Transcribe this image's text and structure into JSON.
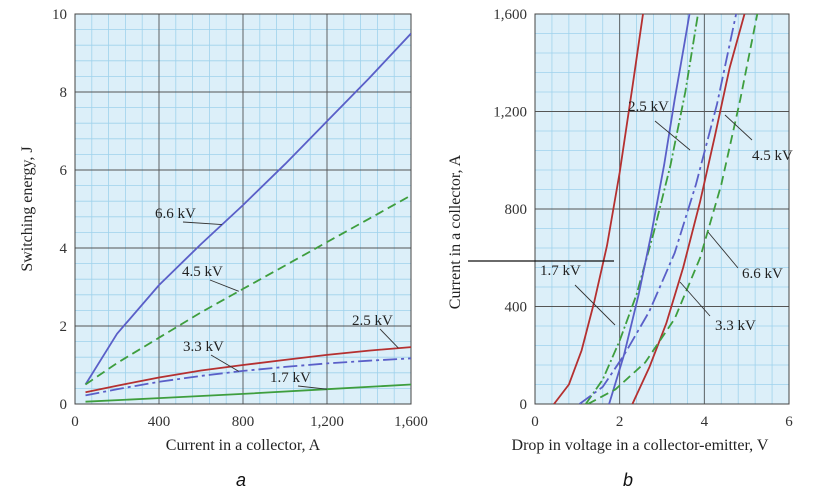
{
  "chart_data": [
    {
      "type": "line",
      "panel_letter": "a",
      "xlabel": "Current in a collector, A",
      "ylabel": "Switching energy, J",
      "xlim": [
        0,
        1600
      ],
      "ylim": [
        0,
        10
      ],
      "x_ticks": [
        0,
        400,
        800,
        1200,
        1600
      ],
      "x_tick_labels": [
        "0",
        "400",
        "800",
        "1,200",
        "1,600"
      ],
      "y_ticks": [
        0,
        2,
        4,
        6,
        8,
        10
      ],
      "y_tick_labels": [
        "0",
        "2",
        "4",
        "6",
        "8",
        "10"
      ],
      "grid": true,
      "series": [
        {
          "name": "6.6 kV",
          "color": "#5a5fc8",
          "dash": "solid",
          "x": [
            50,
            200,
            400,
            600,
            800,
            1000,
            1200,
            1400,
            1600
          ],
          "y": [
            0.5,
            1.8,
            3.05,
            4.1,
            5.1,
            6.15,
            7.25,
            8.35,
            9.5
          ]
        },
        {
          "name": "4.5 kV",
          "color": "#3e9e3e",
          "dash": "dashed",
          "x": [
            50,
            200,
            400,
            600,
            800,
            1000,
            1200,
            1400,
            1600
          ],
          "y": [
            0.5,
            1.05,
            1.7,
            2.35,
            2.95,
            3.55,
            4.15,
            4.75,
            5.35
          ]
        },
        {
          "name": "2.5 kV",
          "color": "#b53030",
          "dash": "solid",
          "x": [
            50,
            200,
            400,
            600,
            800,
            1000,
            1200,
            1400,
            1600
          ],
          "y": [
            0.3,
            0.47,
            0.68,
            0.86,
            1.0,
            1.13,
            1.26,
            1.37,
            1.46
          ]
        },
        {
          "name": "3.3 kV",
          "color": "#5a5fc8",
          "dash": "longdash",
          "x": [
            50,
            200,
            400,
            600,
            800,
            1000,
            1200,
            1400,
            1600
          ],
          "y": [
            0.22,
            0.38,
            0.57,
            0.72,
            0.85,
            0.95,
            1.04,
            1.11,
            1.17
          ]
        },
        {
          "name": "1.7 kV",
          "color": "#3e9e3e",
          "dash": "solid",
          "x": [
            50,
            400,
            800,
            1200,
            1600
          ],
          "y": [
            0.06,
            0.15,
            0.26,
            0.38,
            0.5
          ]
        }
      ],
      "annotations": [
        {
          "text": "6.6 kV",
          "series": "6.6 kV",
          "at_x": 700
        },
        {
          "text": "4.5 kV",
          "series": "4.5 kV",
          "at_x": 780
        },
        {
          "text": "2.5 kV",
          "series": "2.5 kV",
          "at_x": 1540
        },
        {
          "text": "3.3 kV",
          "series": "3.3 kV",
          "at_x": 780
        },
        {
          "text": "1.7 kV",
          "series": "1.7 kV",
          "at_x": 1200
        }
      ]
    },
    {
      "type": "line",
      "panel_letter": "b",
      "xlabel": "Drop in voltage in a collector-emitter, V",
      "ylabel": "Current in a collector, A",
      "xlim": [
        0,
        6
      ],
      "ylim": [
        0,
        1600
      ],
      "x_ticks": [
        0,
        2,
        4,
        6
      ],
      "x_tick_labels": [
        "0",
        "2",
        "4",
        "6"
      ],
      "y_ticks": [
        0,
        400,
        800,
        1200,
        1600
      ],
      "y_tick_labels": [
        "0",
        "400",
        "800",
        "1,200",
        "1,600"
      ],
      "grid": true,
      "series": [
        {
          "name": "1.7 kV",
          "color": "#b53030",
          "dash": "solid",
          "x": [
            0.45,
            0.8,
            1.1,
            1.4,
            1.7,
            2.0,
            2.3,
            2.55
          ],
          "y": [
            0,
            80,
            220,
            420,
            650,
            950,
            1300,
            1600
          ]
        },
        {
          "name": "2.5 kV",
          "color": "#3e9e3e",
          "dash": "dashdot",
          "x": [
            1.2,
            1.6,
            2.0,
            2.4,
            2.8,
            3.2,
            3.55,
            3.85
          ],
          "y": [
            0,
            100,
            260,
            450,
            700,
            980,
            1280,
            1600
          ]
        },
        {
          "name": "4.5 kV",
          "color": "#5a5fc8",
          "dash": "longdash",
          "x": [
            1.05,
            1.6,
            2.1,
            2.7,
            3.3,
            3.8,
            4.3,
            4.75
          ],
          "y": [
            0,
            70,
            200,
            380,
            620,
            900,
            1230,
            1600
          ]
        },
        {
          "name": "3.3 kV (blue)",
          "color": "#5a5fc8",
          "dash": "solid",
          "x": [
            1.75,
            2.1,
            2.45,
            2.75,
            3.05,
            3.3,
            3.5,
            3.65
          ],
          "y": [
            0,
            200,
            450,
            700,
            980,
            1250,
            1450,
            1600
          ]
        },
        {
          "name": "3.3 kV",
          "color": "#b53030",
          "dash": "solid",
          "x": [
            2.3,
            2.7,
            3.1,
            3.5,
            3.9,
            4.25,
            4.6,
            4.95
          ],
          "y": [
            0,
            150,
            330,
            560,
            830,
            1100,
            1380,
            1600
          ]
        },
        {
          "name": "6.6 kV",
          "color": "#3e9e3e",
          "dash": "dashed",
          "x": [
            1.25,
            1.9,
            2.6,
            3.3,
            3.9,
            4.4,
            4.85,
            5.25
          ],
          "y": [
            0,
            60,
            170,
            350,
            600,
            900,
            1250,
            1600
          ]
        }
      ],
      "annotations": [
        {
          "text": "2.5 kV"
        },
        {
          "text": "4.5 kV"
        },
        {
          "text": "1.7 kV"
        },
        {
          "text": "6.6 kV"
        },
        {
          "text": "3.3 kV"
        }
      ]
    }
  ]
}
